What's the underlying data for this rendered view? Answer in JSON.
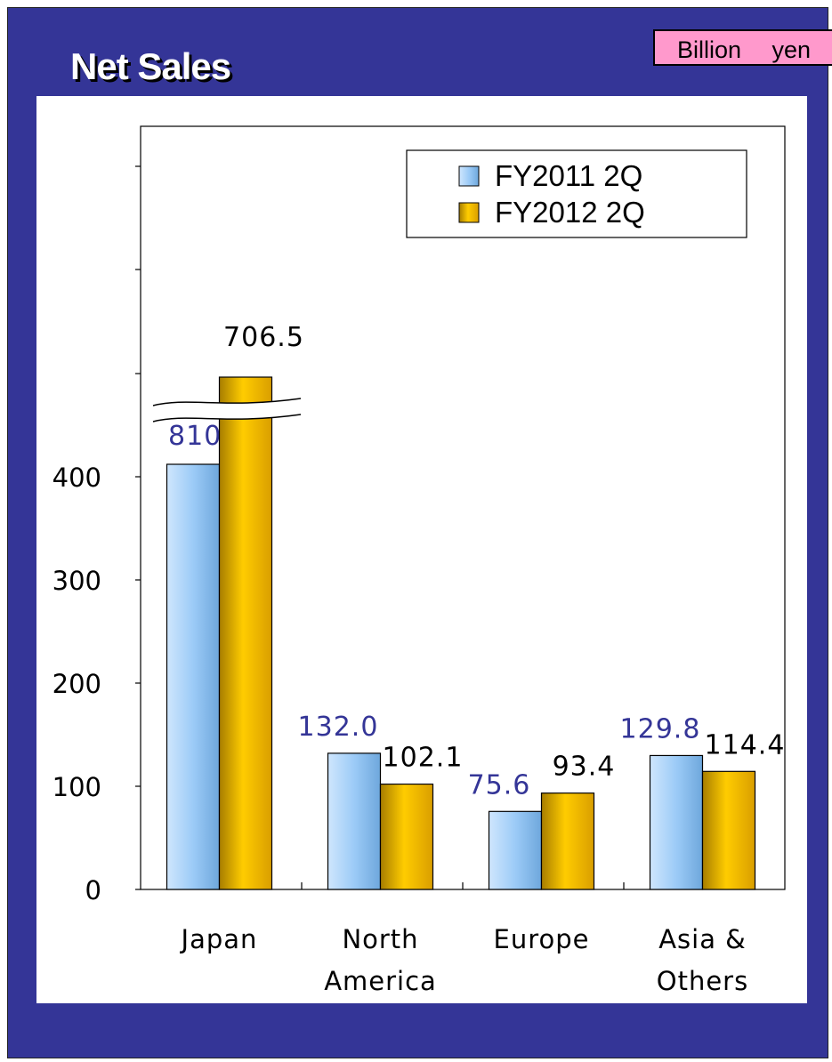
{
  "title": "Net Sales",
  "unit_badge": "Billion 　yen",
  "colors": {
    "background": "#343597",
    "series1": "#9ccbf7",
    "series2": "#f5c000",
    "label1": "#343597",
    "label2": "#000000",
    "unit_badge": "#ff99cc"
  },
  "chart_data": {
    "type": "bar",
    "title": "Net Sales",
    "unit": "Billion yen",
    "categories": [
      [
        "Japan"
      ],
      [
        "North",
        "America"
      ],
      [
        "Europe"
      ],
      [
        "Asia &",
        "Others"
      ]
    ],
    "series": [
      {
        "name": "FY2011 2Q",
        "values": [
          810.5,
          132.0,
          75.6,
          129.8
        ],
        "labels": [
          "810.5",
          "132.0",
          "75.6",
          "129.8"
        ]
      },
      {
        "name": "FY2012 2Q",
        "values": [
          706.5,
          102.1,
          93.4,
          114.4
        ],
        "labels": [
          "706.5",
          "102.1",
          "93.4",
          "114.4"
        ]
      }
    ],
    "yticks": [
      0,
      100,
      200,
      300,
      400
    ],
    "ylim": [
      0,
      400
    ],
    "axis_break": true,
    "legend": "top-right",
    "grid": false
  }
}
